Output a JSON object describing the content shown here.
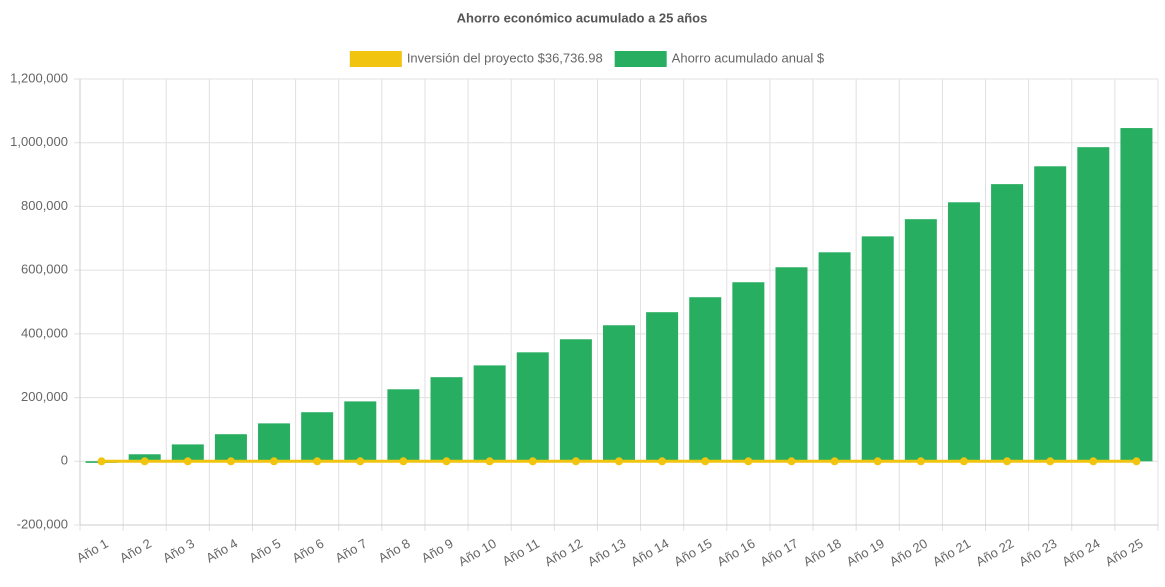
{
  "chart_data": {
    "type": "bar",
    "title": "Ahorro económico acumulado a 25 años",
    "categories": [
      "Año 1",
      "Año 2",
      "Año 3",
      "Año 4",
      "Año 5",
      "Año 6",
      "Año 7",
      "Año 8",
      "Año 9",
      "Año 10",
      "Año 11",
      "Año 12",
      "Año 13",
      "Año 14",
      "Año 15",
      "Año 16",
      "Año 17",
      "Año 18",
      "Año 19",
      "Año 20",
      "Año 21",
      "Año 22",
      "Año 23",
      "Año 24",
      "Año 25"
    ],
    "series": [
      {
        "name": "Inversión del proyecto $36,736.98",
        "type": "line",
        "color": "#f1c40f",
        "values": [
          0,
          0,
          0,
          0,
          0,
          0,
          0,
          0,
          0,
          0,
          0,
          0,
          0,
          0,
          0,
          0,
          0,
          0,
          0,
          0,
          0,
          0,
          0,
          0,
          0
        ]
      },
      {
        "name": "Ahorro acumulado anual $",
        "type": "bar",
        "color": "#27ae60",
        "values": [
          -5000,
          22000,
          53000,
          85000,
          119000,
          154000,
          188000,
          226000,
          264000,
          301000,
          342000,
          383000,
          427000,
          468000,
          515000,
          562000,
          609000,
          656000,
          706000,
          760000,
          813000,
          870000,
          926000,
          986000,
          1046000
        ]
      }
    ],
    "ylim": [
      -200000,
      1200000
    ],
    "yticks": [
      {
        "value": -200000,
        "label": "-200,000"
      },
      0,
      {
        "value": 200000,
        "label": "200,000"
      },
      {
        "value": 400000,
        "label": "400,000"
      },
      {
        "value": 600000,
        "label": "600,000"
      },
      {
        "value": 800000,
        "label": "800,000"
      },
      {
        "value": 1000000,
        "label": "1,000,000"
      },
      {
        "value": 1200000,
        "label": "1,200,000"
      }
    ],
    "grid": true,
    "legend": "top"
  }
}
